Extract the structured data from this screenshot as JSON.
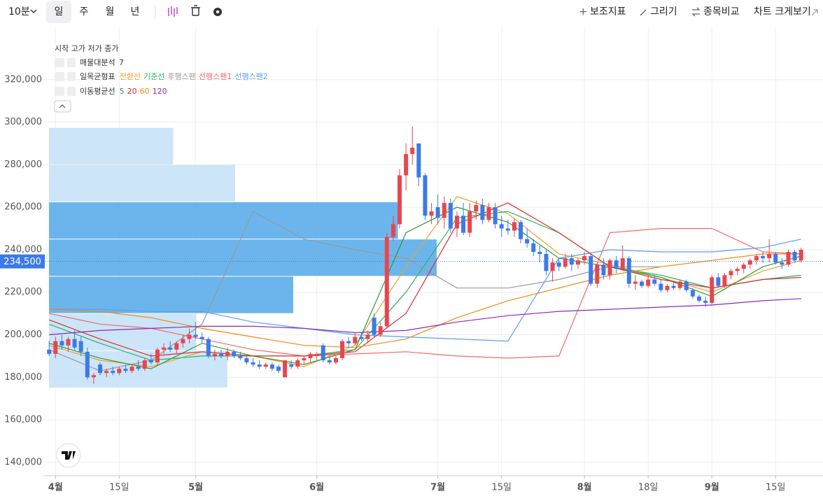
{
  "toolbar": {
    "interval": "10분",
    "periods": [
      "일",
      "주",
      "월",
      "년"
    ],
    "actions": [
      "보조지표",
      "그리기",
      "종목비교",
      "차트 크게보기"
    ]
  },
  "chart_data": {
    "type": "candlestick",
    "legend_title": "시작 고가 저가 종가",
    "up_color": "#e8464f",
    "down_color": "#3b7ae8",
    "candles": [
      [
        193000,
        197000,
        190000,
        191000
      ],
      [
        191000,
        199000,
        189000,
        197000
      ],
      [
        197000,
        200000,
        193000,
        195000
      ],
      [
        195000,
        199000,
        192000,
        198000
      ],
      [
        198000,
        202000,
        193000,
        194000
      ],
      [
        197000,
        199000,
        190000,
        192000
      ],
      [
        192000,
        194000,
        179000,
        180000
      ],
      [
        180000,
        182000,
        177000,
        181000
      ],
      [
        186000,
        187000,
        181000,
        182000
      ],
      [
        182000,
        184000,
        180000,
        183000
      ],
      [
        183000,
        185000,
        181000,
        182000
      ],
      [
        182000,
        185000,
        181000,
        184000
      ],
      [
        184000,
        186000,
        182000,
        183000
      ],
      [
        183000,
        186000,
        182000,
        185000
      ],
      [
        185000,
        188000,
        183000,
        184000
      ],
      [
        184000,
        189000,
        183000,
        188000
      ],
      [
        188000,
        191000,
        186000,
        187000
      ],
      [
        187000,
        194000,
        186000,
        193000
      ],
      [
        193000,
        196000,
        191000,
        194000
      ],
      [
        194000,
        197000,
        192000,
        193000
      ],
      [
        193000,
        197000,
        191000,
        196000
      ],
      [
        196000,
        200000,
        194000,
        198000
      ],
      [
        198000,
        203000,
        196000,
        200000
      ],
      [
        200000,
        206000,
        198000,
        199000
      ],
      [
        199000,
        201000,
        196000,
        198000
      ],
      [
        198000,
        199000,
        189000,
        190000
      ],
      [
        190000,
        193000,
        188000,
        191000
      ],
      [
        191000,
        193000,
        189000,
        190000
      ],
      [
        190000,
        194000,
        188000,
        192000
      ],
      [
        192000,
        193000,
        189000,
        190000
      ],
      [
        190000,
        192000,
        188000,
        189000
      ],
      [
        189000,
        190000,
        186000,
        187000
      ],
      [
        187000,
        189000,
        185000,
        186000
      ],
      [
        186000,
        188000,
        184000,
        185000
      ],
      [
        185000,
        187000,
        184000,
        186000
      ],
      [
        186000,
        187000,
        183000,
        184000
      ],
      [
        185000,
        186000,
        182000,
        183000
      ],
      [
        180000,
        188000,
        180000,
        188000
      ],
      [
        186000,
        188000,
        184000,
        185000
      ],
      [
        185000,
        189000,
        184000,
        188000
      ],
      [
        188000,
        190000,
        186000,
        189000
      ],
      [
        189000,
        192000,
        187000,
        191000
      ],
      [
        190000,
        192000,
        188000,
        191000
      ],
      [
        195000,
        196000,
        187000,
        188000
      ],
      [
        188000,
        190000,
        186000,
        187000
      ],
      [
        187000,
        190000,
        186000,
        189000
      ],
      [
        189000,
        198000,
        188000,
        197000
      ],
      [
        197000,
        199000,
        194000,
        196000
      ],
      [
        196000,
        201000,
        195000,
        199000
      ],
      [
        199000,
        201000,
        197000,
        198000
      ],
      [
        198000,
        202000,
        196000,
        200000
      ],
      [
        208000,
        210000,
        199000,
        200000
      ],
      [
        200000,
        206000,
        199000,
        204000
      ],
      [
        204000,
        248000,
        203000,
        246000
      ],
      [
        246000,
        256000,
        244000,
        252000
      ],
      [
        252000,
        278000,
        250000,
        275000
      ],
      [
        275000,
        290000,
        268000,
        285000
      ],
      [
        285000,
        298000,
        280000,
        288000
      ],
      [
        290000,
        290000,
        270000,
        274000
      ],
      [
        275000,
        276000,
        254000,
        256000
      ],
      [
        256000,
        262000,
        252000,
        258000
      ],
      [
        260000,
        266000,
        252000,
        255000
      ],
      [
        255000,
        265000,
        250000,
        262000
      ],
      [
        262000,
        264000,
        248000,
        250000
      ],
      [
        250000,
        258000,
        246000,
        256000
      ],
      [
        256000,
        262000,
        247000,
        248000
      ],
      [
        248000,
        262000,
        246000,
        258000
      ],
      [
        258000,
        263000,
        254000,
        261000
      ],
      [
        261000,
        264000,
        252000,
        254000
      ],
      [
        254000,
        262000,
        253000,
        260000
      ],
      [
        260000,
        262000,
        250000,
        252000
      ],
      [
        252000,
        256000,
        246000,
        250000
      ],
      [
        250000,
        254000,
        247000,
        249000
      ],
      [
        249000,
        255000,
        246000,
        253000
      ],
      [
        253000,
        254000,
        243000,
        245000
      ],
      [
        245000,
        250000,
        241000,
        243000
      ],
      [
        243000,
        245000,
        237000,
        239000
      ],
      [
        239000,
        242000,
        234000,
        238000
      ],
      [
        238000,
        240000,
        228000,
        230000
      ],
      [
        230000,
        236000,
        225000,
        234000
      ],
      [
        234000,
        236000,
        230000,
        232000
      ],
      [
        232000,
        238000,
        231000,
        236000
      ],
      [
        236000,
        238000,
        230000,
        233000
      ],
      [
        233000,
        236000,
        231000,
        235000
      ],
      [
        235000,
        239000,
        233000,
        237000
      ],
      [
        237000,
        238000,
        223000,
        224000
      ],
      [
        224000,
        234000,
        222000,
        233000
      ],
      [
        233000,
        236000,
        226000,
        228000
      ],
      [
        228000,
        236000,
        226000,
        235000
      ],
      [
        235000,
        237000,
        229000,
        231000
      ],
      [
        231000,
        242000,
        230000,
        236000
      ],
      [
        236000,
        237000,
        222000,
        224000
      ],
      [
        224000,
        228000,
        221000,
        225000
      ],
      [
        225000,
        226000,
        222000,
        223000
      ],
      [
        223000,
        228000,
        222000,
        226000
      ],
      [
        226000,
        228000,
        223000,
        224000
      ],
      [
        224000,
        226000,
        220000,
        221000
      ],
      [
        221000,
        224000,
        220000,
        223000
      ],
      [
        223000,
        225000,
        221000,
        222000
      ],
      [
        222000,
        226000,
        221000,
        225000
      ],
      [
        225000,
        226000,
        220000,
        221000
      ],
      [
        221000,
        222000,
        217000,
        218000
      ],
      [
        218000,
        219000,
        215000,
        216000
      ],
      [
        216000,
        218000,
        213000,
        215000
      ],
      [
        215000,
        228000,
        214000,
        227000
      ],
      [
        227000,
        229000,
        222000,
        223000
      ],
      [
        223000,
        229000,
        222000,
        228000
      ],
      [
        228000,
        231000,
        226000,
        230000
      ],
      [
        230000,
        232000,
        228000,
        231000
      ],
      [
        231000,
        234000,
        229000,
        233000
      ],
      [
        233000,
        236000,
        231000,
        235000
      ],
      [
        235000,
        238000,
        233000,
        237000
      ],
      [
        237000,
        239000,
        234000,
        236000
      ],
      [
        236000,
        245000,
        234000,
        238000
      ],
      [
        238000,
        239000,
        233000,
        234000
      ],
      [
        234000,
        236000,
        231000,
        233000
      ],
      [
        233000,
        240000,
        232000,
        239000
      ],
      [
        239000,
        240000,
        234000,
        235000
      ],
      [
        235000,
        241000,
        234000,
        240000
      ]
    ],
    "xlim": [
      -0.9,
      121
    ],
    "xticks": [
      {
        "value": 1,
        "label": "4월"
      },
      {
        "value": 11,
        "label": "15일"
      },
      {
        "value": 23,
        "label": "5월"
      },
      {
        "value": 42,
        "label": "6월"
      },
      {
        "value": 61,
        "label": "7월"
      },
      {
        "value": 71,
        "label": "15일"
      },
      {
        "value": 84,
        "label": "8월"
      },
      {
        "value": 94,
        "label": "18일"
      },
      {
        "value": 104,
        "label": "9월"
      },
      {
        "value": 114,
        "label": "15일"
      }
    ],
    "ylim": [
      133700,
      344300
    ],
    "yticks": [
      {
        "value": 140000,
        "label": "140,000"
      },
      {
        "value": 160000,
        "label": "160,000"
      },
      {
        "value": 180000,
        "label": "180,000"
      },
      {
        "value": 200000,
        "label": "200,000"
      },
      {
        "value": 220000,
        "label": "220,000"
      },
      {
        "value": 240000,
        "label": "240,000"
      },
      {
        "value": 260000,
        "label": "260,000"
      },
      {
        "value": 280000,
        "label": "280,000"
      },
      {
        "value": 300000,
        "label": "300,000"
      },
      {
        "value": 320000,
        "label": "320,000"
      }
    ],
    "grid": true,
    "current_price": {
      "value": 234500,
      "label": "234,500"
    },
    "volume_profile": {
      "name": "매물대분석",
      "period": 7,
      "bins": [
        175000,
        192500,
        210000,
        227500,
        245000,
        262500,
        280000,
        297500
      ],
      "counts": [
        46,
        38,
        63,
        100,
        90,
        48,
        32
      ],
      "colors": [
        "#c6e2f7",
        "#c6e2f7",
        "#5badea",
        "#5badea",
        "#5badea",
        "#c6e2f7",
        "#c6e2f7"
      ]
    },
    "ichimoku": {
      "name": "일목균형표",
      "series": [
        {
          "name": "전환선",
          "color": "#f0a030",
          "x": [
            0,
            8,
            16,
            24,
            32,
            40,
            48,
            56,
            64,
            72,
            80,
            88,
            96,
            104,
            112,
            118
          ],
          "values": [
            195000,
            188000,
            185000,
            192000,
            190000,
            185000,
            195000,
            232000,
            265000,
            257000,
            238000,
            233000,
            227000,
            220000,
            230000,
            235000
          ]
        },
        {
          "name": "기준선",
          "color": "#2cb36a",
          "x": [
            0,
            8,
            16,
            24,
            32,
            40,
            48,
            56,
            64,
            72,
            80,
            88,
            96,
            104,
            112,
            118
          ],
          "values": [
            205000,
            196000,
            188000,
            190000,
            190000,
            190000,
            193000,
            220000,
            255000,
            258000,
            248000,
            232000,
            228000,
            222000,
            226000,
            228000
          ]
        },
        {
          "name": "후행스팬",
          "color": "#9a9a9a",
          "x": [
            0,
            8,
            16,
            24,
            32,
            40,
            48,
            56,
            64,
            72,
            80,
            88,
            96,
            104,
            112,
            118
          ],
          "values": [
            193000,
            183000,
            188000,
            205000,
            258000,
            245000,
            240000,
            236000,
            222000,
            222000,
            226000,
            232000,
            232000,
            null,
            null,
            null
          ]
        },
        {
          "name": "선행스팬1",
          "color": "#f06a6a",
          "x": [
            0,
            8,
            16,
            24,
            32,
            40,
            48,
            56,
            64,
            72,
            80,
            88,
            96,
            104,
            112,
            118
          ],
          "values": [
            210000,
            205000,
            203000,
            198000,
            193000,
            190000,
            191000,
            192000,
            190000,
            189000,
            190000,
            248000,
            250000,
            250000,
            239000,
            238000
          ]
        },
        {
          "name": "선행스팬2",
          "color": "#5b9ff0",
          "x": [
            0,
            8,
            16,
            24,
            32,
            40,
            48,
            56,
            64,
            72,
            80,
            88,
            96,
            104,
            112,
            118
          ],
          "values": [
            212000,
            212000,
            211000,
            211000,
            206000,
            203000,
            200000,
            199000,
            198000,
            197000,
            236000,
            240000,
            239000,
            239000,
            241000,
            245000
          ]
        }
      ]
    },
    "moving_average": {
      "name": "이동평균선",
      "series": [
        {
          "name": "5",
          "color": "#2a9d3a",
          "x": [
            0,
            8,
            16,
            24,
            32,
            40,
            48,
            56,
            64,
            72,
            80,
            88,
            96,
            104,
            112,
            118
          ],
          "values": [
            196000,
            189000,
            184000,
            196000,
            190000,
            186000,
            193000,
            248000,
            260000,
            253000,
            236000,
            232000,
            227000,
            218000,
            232000,
            237000
          ]
        },
        {
          "name": "20",
          "color": "#d9302c",
          "x": [
            0,
            8,
            16,
            24,
            32,
            40,
            48,
            56,
            64,
            72,
            80,
            88,
            96,
            104,
            112,
            118
          ],
          "values": [
            207000,
            198000,
            190000,
            192000,
            190000,
            190000,
            192000,
            210000,
            252000,
            262000,
            248000,
            232000,
            226000,
            222000,
            226000,
            227000
          ]
        },
        {
          "name": "60",
          "color": "#f08a10",
          "x": [
            0,
            8,
            16,
            24,
            32,
            40,
            48,
            56,
            64,
            72,
            80,
            88,
            96,
            104,
            112,
            118
          ],
          "values": [
            212000,
            211000,
            208000,
            203000,
            199000,
            195000,
            194000,
            198000,
            208000,
            216000,
            222000,
            228000,
            232000,
            235000,
            238000,
            238000
          ]
        },
        {
          "name": "120",
          "color": "#8e2ab8",
          "x": [
            0,
            8,
            16,
            24,
            32,
            40,
            48,
            56,
            64,
            72,
            80,
            88,
            96,
            104,
            112,
            118
          ],
          "values": [
            200000,
            202000,
            203000,
            204000,
            204000,
            203000,
            201000,
            202000,
            206000,
            209000,
            211000,
            212000,
            213000,
            214000,
            216000,
            217000
          ]
        }
      ]
    }
  }
}
